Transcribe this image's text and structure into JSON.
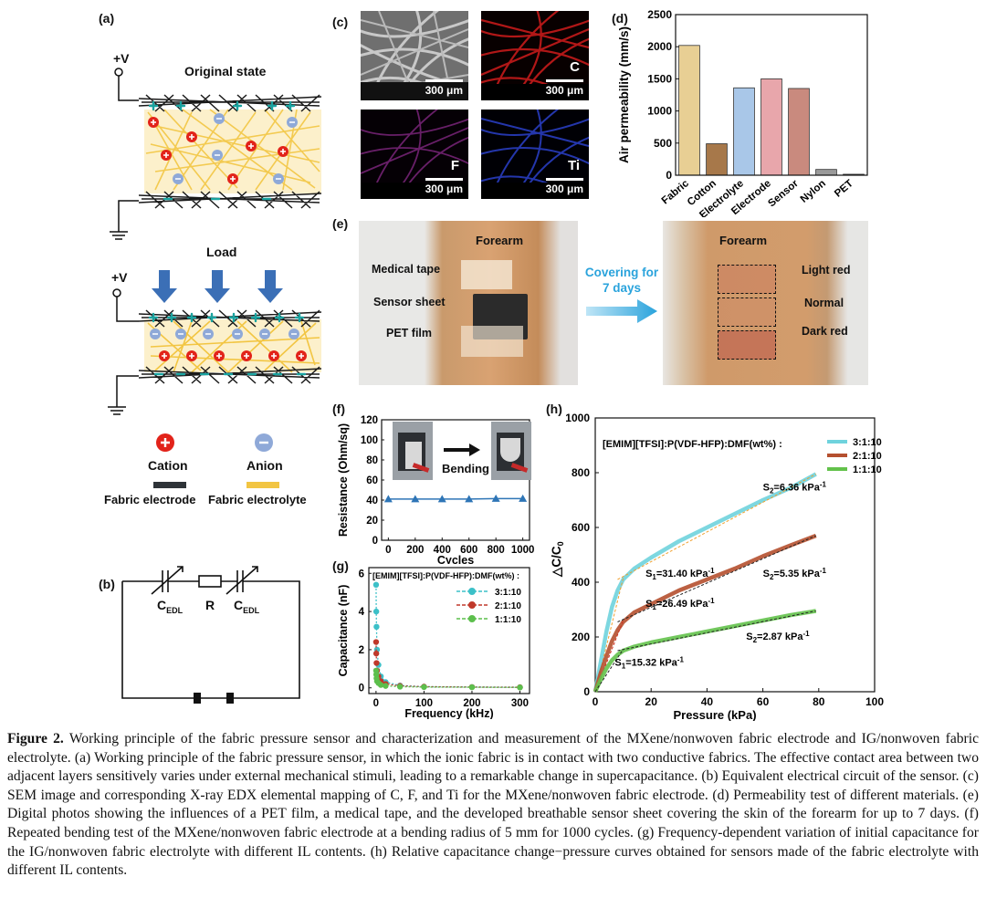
{
  "panel_labels": {
    "a": "(a)",
    "b": "(b)",
    "c": "(c)",
    "d": "(d)",
    "e": "(e)",
    "f": "(f)",
    "g": "(g)",
    "h": "(h)"
  },
  "panel_a": {
    "voltage": "+V",
    "original_state": "Original state",
    "load": "Load",
    "legend": {
      "cation": "Cation",
      "anion": "Anion",
      "fabric_electrode": "Fabric electrode",
      "fabric_electrolyte": "Fabric electrolyte"
    },
    "colors": {
      "electrode": "#222222",
      "electrolyte": "#f2c542",
      "cation": "#e2231a",
      "anion": "#8fa9d8",
      "arrow": "#3b6fb6"
    }
  },
  "panel_b": {
    "c_edl": "C",
    "c_edl_sub": "EDL",
    "r": "R"
  },
  "panel_c": {
    "scale": "300 μm",
    "maps": [
      {
        "element": "",
        "tint": "#9a9a9a"
      },
      {
        "element": "C",
        "tint": "#c41a1a"
      },
      {
        "element": "F",
        "tint": "#8a2a8a"
      },
      {
        "element": "Ti",
        "tint": "#2a3fc9"
      }
    ]
  },
  "panel_e": {
    "forearm_left": "Forearm",
    "forearm_right": "Forearm",
    "medical_tape": "Medical tape",
    "sensor_sheet": "Sensor sheet",
    "pet_film": "PET film",
    "covering_line1": "Covering for",
    "covering_line2": "7 days",
    "light_red": "Light red",
    "normal": "Normal",
    "dark_red": "Dark red"
  },
  "panel_f": {
    "bending": "Bending"
  },
  "caption": {
    "label": "Figure 2.",
    "text": "Working principle of the fabric pressure sensor and characterization and measurement of the MXene/nonwoven fabric electrode and IG/nonwoven fabric electrolyte. (a) Working principle of the fabric pressure sensor, in which the ionic fabric is in contact with two conductive fabrics. The effective contact area between two adjacent layers sensitively varies under external mechanical stimuli, leading to a remarkable change in supercapacitance. (b) Equivalent electrical circuit of the sensor. (c) SEM image and corresponding X-ray EDX elemental mapping of C, F, and Ti for the MXene/nonwoven fabric electrode. (d) Permeability test of different materials. (e) Digital photos showing the influences of a PET film, a medical tape, and the developed breathable sensor sheet covering the skin of the forearm for up to 7 days. (f) Repeated bending test of the MXene/nonwoven fabric electrode at a bending radius of 5 mm for 1000 cycles. (g) Frequency-dependent variation of initial capacitance for the IG/nonwoven fabric electrolyte with different IL contents. (h) Relative capacitance change−pressure curves obtained for sensors made of the fabric electrolyte with different IL contents."
  },
  "chart_data": [
    {
      "id": "d",
      "type": "bar",
      "categories": [
        "Fabric",
        "Cotton",
        "Electrolyte",
        "Electrode",
        "Sensor",
        "Nylon",
        "PET"
      ],
      "values": [
        2020,
        490,
        1360,
        1500,
        1350,
        90,
        15
      ],
      "colors": [
        "#e8cf94",
        "#a7784a",
        "#a9c7e8",
        "#e8a6ab",
        "#c98a7e",
        "#9a9a9a",
        "#555555"
      ],
      "ylabel": "Air permeability (mm/s)",
      "ylim": [
        0,
        2500
      ],
      "yticks": [
        0,
        500,
        1000,
        1500,
        2000,
        2500
      ]
    },
    {
      "id": "f",
      "type": "line",
      "x": [
        0,
        200,
        400,
        600,
        800,
        1000
      ],
      "values": [
        41,
        41,
        41,
        41,
        41.5,
        41.5
      ],
      "xlabel": "Cycles",
      "ylabel": "Resistance (Ohm/sq)",
      "xlim": [
        -50,
        1050
      ],
      "ylim": [
        0,
        120
      ],
      "xticks": [
        0,
        200,
        400,
        600,
        800,
        1000
      ],
      "yticks": [
        0,
        20,
        40,
        60,
        80,
        100,
        120
      ],
      "color": "#2e75b6"
    },
    {
      "id": "g",
      "type": "scatter",
      "title": "[EMIM][TFSI]:P(VDF-HFP):DMF(wt%) :",
      "xlabel": "Frequency (kHz)",
      "ylabel": "Capacitance (nF)",
      "xlim": [
        -15,
        320
      ],
      "ylim": [
        -0.3,
        6.3
      ],
      "xticks": [
        0,
        100,
        200,
        300
      ],
      "yticks": [
        0,
        2,
        4,
        6
      ],
      "series": [
        {
          "name": "3:1:10",
          "color": "#3cc0c8",
          "x": [
            0.1,
            0.5,
            1,
            2,
            5,
            10,
            20,
            50,
            100,
            200,
            300
          ],
          "y": [
            5.4,
            4.0,
            3.2,
            2.0,
            1.2,
            0.6,
            0.3,
            0.12,
            0.06,
            0.04,
            0.03
          ]
        },
        {
          "name": "2:1:10",
          "color": "#c0392b",
          "x": [
            0.1,
            0.5,
            1,
            2,
            5,
            10,
            20,
            50,
            100,
            200,
            300
          ],
          "y": [
            2.4,
            1.8,
            1.3,
            0.9,
            0.6,
            0.35,
            0.2,
            0.1,
            0.06,
            0.04,
            0.03
          ]
        },
        {
          "name": "1:1:10",
          "color": "#5cbf4c",
          "x": [
            0.1,
            0.5,
            1,
            2,
            5,
            10,
            20,
            50,
            100,
            200,
            300
          ],
          "y": [
            0.9,
            0.7,
            0.5,
            0.35,
            0.25,
            0.15,
            0.1,
            0.06,
            0.04,
            0.03,
            0.02
          ]
        }
      ]
    },
    {
      "id": "h",
      "type": "line",
      "title": "[EMIM][TFSI]:P(VDF-HFP):DMF(wt%) :",
      "xlabel": "Pressure (kPa)",
      "ylabel": "△C/C",
      "ylabel_sub": "0",
      "xlim": [
        0,
        100
      ],
      "ylim": [
        0,
        1000
      ],
      "xticks": [
        0,
        20,
        40,
        60,
        80,
        100
      ],
      "yticks": [
        0,
        200,
        400,
        600,
        800,
        1000
      ],
      "series": [
        {
          "name": "3:1:10",
          "color": "#6fd3dd",
          "x": [
            0,
            2,
            4,
            6,
            8,
            10,
            14,
            20,
            30,
            40,
            50,
            60,
            70,
            79
          ],
          "y": [
            0,
            110,
            220,
            310,
            370,
            410,
            450,
            490,
            550,
            600,
            650,
            700,
            745,
            795
          ]
        },
        {
          "name": "2:1:10",
          "color": "#b5502f",
          "x": [
            0,
            2,
            4,
            6,
            8,
            10,
            14,
            20,
            30,
            40,
            50,
            60,
            70,
            79
          ],
          "y": [
            0,
            70,
            130,
            185,
            225,
            255,
            290,
            320,
            370,
            410,
            450,
            495,
            535,
            570
          ]
        },
        {
          "name": "1:1:10",
          "color": "#63c24b",
          "x": [
            0,
            2,
            4,
            6,
            8,
            10,
            14,
            20,
            30,
            40,
            50,
            60,
            70,
            79
          ],
          "y": [
            0,
            45,
            85,
            115,
            135,
            150,
            165,
            180,
            200,
            220,
            240,
            260,
            280,
            295
          ]
        }
      ],
      "annotations": [
        {
          "text": "S",
          "sub": "2",
          "tail": "=6.36 kPa",
          "sup": "-1",
          "x": 60,
          "y": 735
        },
        {
          "text": "S",
          "sub": "1",
          "tail": "=31.40 kPa",
          "sup": "-1",
          "x": 18,
          "y": 420
        },
        {
          "text": "S",
          "sub": "2",
          "tail": "=5.35 kPa",
          "sup": "-1",
          "x": 60,
          "y": 420
        },
        {
          "text": "S",
          "sub": "1",
          "tail": "=26.49 kPa",
          "sup": "-1",
          "x": 18,
          "y": 310
        },
        {
          "text": "S",
          "sub": "2",
          "tail": "=2.87 kPa",
          "sup": "-1",
          "x": 54,
          "y": 190
        },
        {
          "text": "S",
          "sub": "1",
          "tail": "=15.32 kPa",
          "sup": "-1",
          "x": 7,
          "y": 95
        }
      ]
    }
  ]
}
